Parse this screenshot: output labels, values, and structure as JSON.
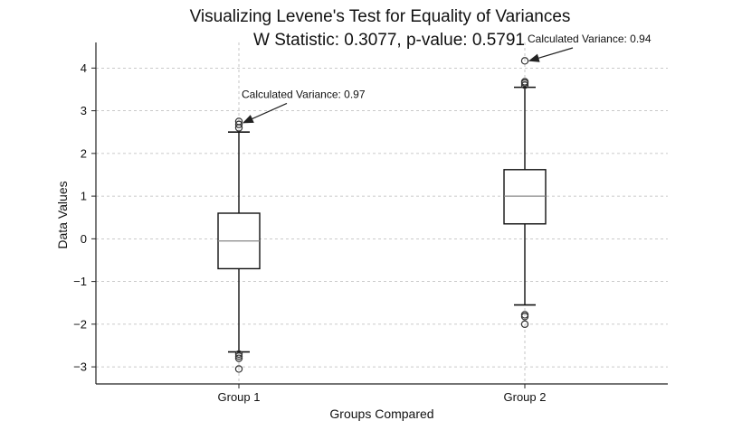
{
  "chart_data": {
    "type": "box",
    "title": "Visualizing Levene's Test for Equality of Variances",
    "subtitle": "W Statistic: 0.3077, p-value: 0.5791",
    "xlabel": "Groups Compared",
    "ylabel": "Data Values",
    "ylim": [
      -3.4,
      4.6
    ],
    "yticks": [
      -3,
      -2,
      -1,
      0,
      1,
      2,
      3,
      4
    ],
    "ytick_labels": [
      "−3",
      "−2",
      "−1",
      "0",
      "1",
      "2",
      "3",
      "4"
    ],
    "grid": true,
    "categories": [
      "Group 1",
      "Group 2"
    ],
    "boxes": [
      {
        "name": "Group 1",
        "whisker_low": -2.65,
        "q1": -0.7,
        "median": -0.05,
        "q3": 0.6,
        "whisker_high": 2.5,
        "fliers": [
          2.6,
          2.68,
          2.75,
          -2.7,
          -2.75,
          -2.8,
          -3.05
        ],
        "annotation": {
          "text": "Calculated Variance: 0.97",
          "x_offset": 0.02,
          "y": 3.3,
          "target_y": 2.72
        }
      },
      {
        "name": "Group 2",
        "whisker_low": -1.55,
        "q1": 0.35,
        "median": 1.0,
        "q3": 1.62,
        "whisker_high": 3.55,
        "fliers": [
          3.6,
          3.65,
          3.68,
          4.17,
          -1.78,
          -1.82,
          -2.0
        ],
        "annotation": {
          "text": "Calculated Variance: 0.94",
          "x_offset": 0.1,
          "y": 4.6,
          "target_y": 4.17
        }
      }
    ]
  }
}
